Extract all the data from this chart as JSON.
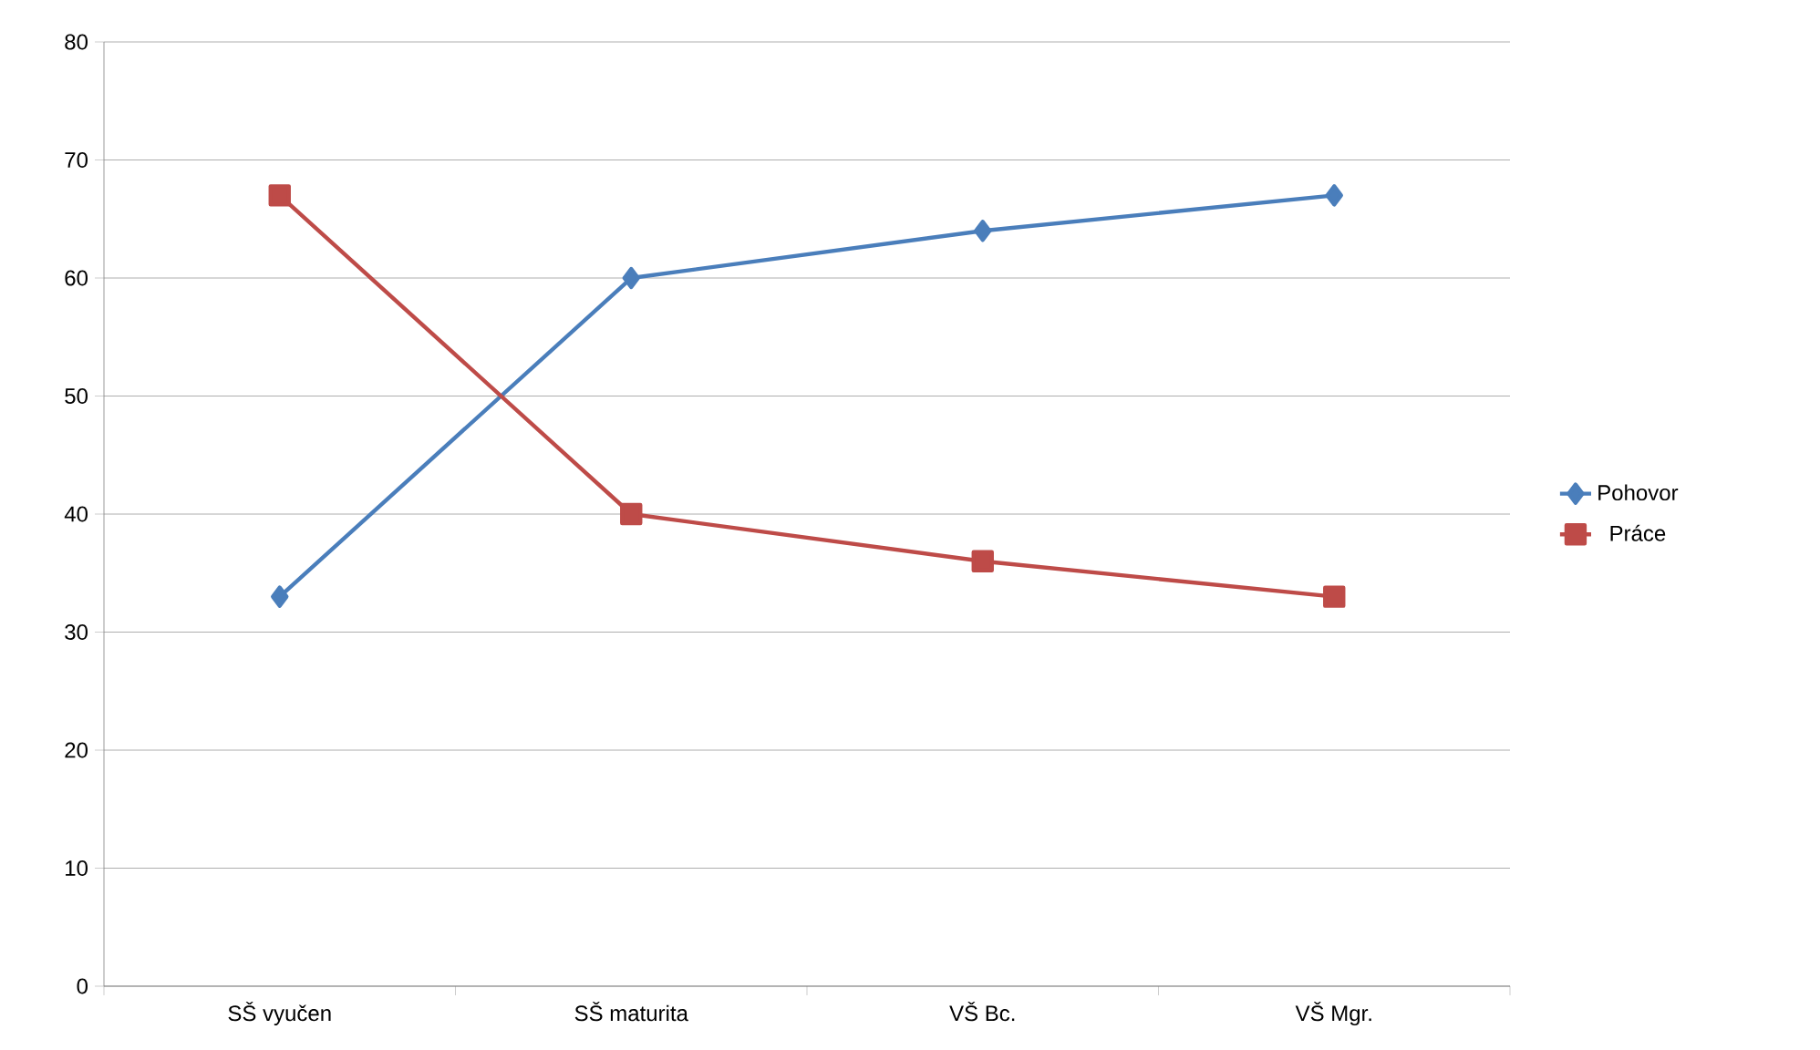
{
  "chart_data": {
    "type": "line",
    "categories": [
      "SŠ vyučen",
      "SŠ maturita",
      "VŠ Bc.",
      "VŠ Mgr."
    ],
    "series": [
      {
        "name": "Pohovor",
        "color": "#4a7ebb",
        "marker": "diamond",
        "values": [
          33,
          60,
          64,
          67
        ]
      },
      {
        "name": "Práce",
        "color": "#be4b48",
        "marker": "square",
        "values": [
          67,
          40,
          36,
          33
        ]
      }
    ],
    "ylim": [
      0,
      80
    ],
    "yticks": [
      0,
      10,
      20,
      30,
      40,
      50,
      60,
      70,
      80
    ],
    "grid": "y",
    "legend": "right",
    "line_style": "solid"
  }
}
